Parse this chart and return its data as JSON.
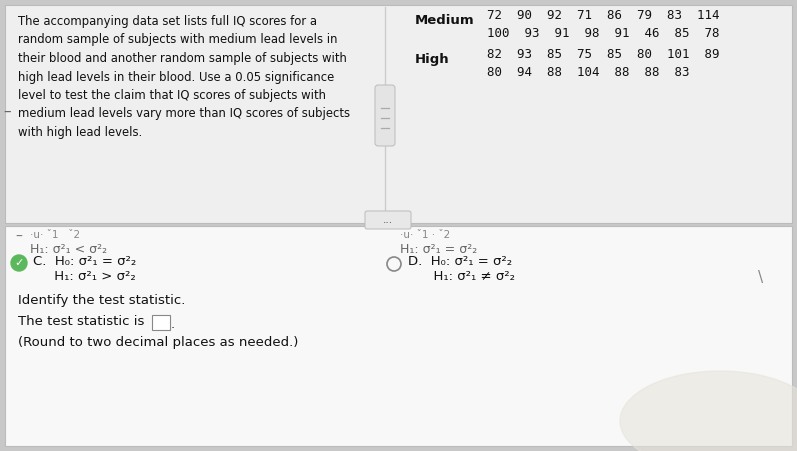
{
  "bg_color": "#c8c8c8",
  "top_panel_color": "#f0f0f0",
  "bottom_panel_color": "#f5f5f5",
  "left_text_lines": [
    "The accompanying data set lists full IQ scores for a",
    "random sample of subjects with medium lead levels in",
    "their blood and another random sample of subjects with",
    "high lead levels in their blood. Use a 0.05 significance",
    "level to test the claim that IQ scores of subjects with",
    "medium lead levels vary more than IQ scores of subjects",
    "with high lead levels."
  ],
  "medium_label": "Medium",
  "medium_line1": "72  90  92  71  86  79  83  114",
  "medium_line2": "100  93  91  98  91  46  85  78",
  "high_label": "High",
  "high_line1": "82  93  85  75  85  80  101  89",
  "high_line2": "80  94  88  104  88  88  83",
  "optA_l1": "·u· ˇ1   ˇ2",
  "optA_l2": "H₁: σ²₁ < σ²₂",
  "optB_l1": "·u· ˇ1 · ˇ2",
  "optB_l2": "H₁: σ²₁ = σ²₂",
  "optC_l1": "C.  H₀: σ²₁ = σ²₂",
  "optC_l2": "     H₁: σ²₁ > σ²₂",
  "optD_l1": "D.  H₀: σ²₁ = σ²₂",
  "optD_l2": "      H₁: σ²₁ ≠ σ²₂",
  "identify_text": "Identify the test statistic.",
  "test_stat_text": "The test statistic is",
  "round_text": "(Round to two decimal places as needed.)"
}
